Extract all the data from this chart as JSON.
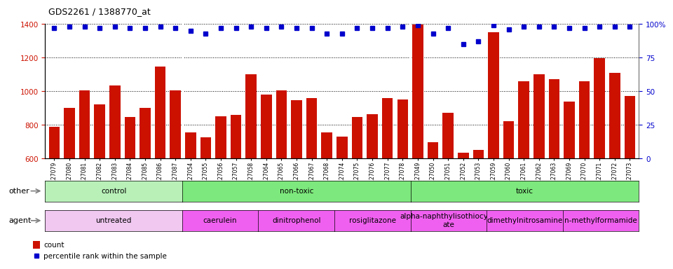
{
  "title": "GDS2261 / 1388770_at",
  "samples": [
    "GSM127079",
    "GSM127080",
    "GSM127081",
    "GSM127082",
    "GSM127083",
    "GSM127084",
    "GSM127085",
    "GSM127086",
    "GSM127087",
    "GSM127054",
    "GSM127055",
    "GSM127056",
    "GSM127057",
    "GSM127058",
    "GSM127064",
    "GSM127065",
    "GSM127066",
    "GSM127067",
    "GSM127068",
    "GSM127074",
    "GSM127075",
    "GSM127076",
    "GSM127077",
    "GSM127078",
    "GSM127049",
    "GSM127050",
    "GSM127051",
    "GSM127052",
    "GSM127053",
    "GSM127059",
    "GSM127060",
    "GSM127061",
    "GSM127062",
    "GSM127063",
    "GSM127069",
    "GSM127070",
    "GSM127071",
    "GSM127072",
    "GSM127073"
  ],
  "counts": [
    790,
    900,
    1005,
    920,
    1035,
    845,
    900,
    1145,
    1005,
    755,
    725,
    850,
    860,
    1100,
    980,
    1005,
    945,
    960,
    755,
    730,
    845,
    865,
    960,
    950,
    1395,
    695,
    870,
    635,
    650,
    1350,
    820,
    1060,
    1100,
    1070,
    940,
    1060,
    1195,
    1110,
    970
  ],
  "percentile_ranks": [
    97,
    98,
    98,
    97,
    98,
    97,
    97,
    98,
    97,
    95,
    93,
    97,
    97,
    98,
    97,
    98,
    97,
    97,
    93,
    93,
    97,
    97,
    97,
    98,
    99,
    93,
    97,
    85,
    87,
    99,
    96,
    98,
    98,
    98,
    97,
    97,
    98,
    98,
    98
  ],
  "ylim_left": [
    600,
    1400
  ],
  "ylim_right": [
    0,
    100
  ],
  "yticks_left": [
    600,
    800,
    1000,
    1200,
    1400
  ],
  "yticks_right": [
    0,
    25,
    50,
    75,
    100
  ],
  "bar_color": "#cc1100",
  "dot_color": "#0000cc",
  "bg_color": "#e8e8e8",
  "plot_bg": "#ffffff",
  "other_groups": [
    {
      "label": "control",
      "color": "#b8f0b8",
      "start": 0,
      "end": 9
    },
    {
      "label": "non-toxic",
      "color": "#7de87d",
      "start": 9,
      "end": 24
    },
    {
      "label": "toxic",
      "color": "#7de87d",
      "start": 24,
      "end": 39
    }
  ],
  "agent_groups": [
    {
      "label": "untreated",
      "color": "#f0c8f0",
      "start": 0,
      "end": 9
    },
    {
      "label": "caerulein",
      "color": "#f060f0",
      "start": 9,
      "end": 14
    },
    {
      "label": "dinitrophenol",
      "color": "#f060f0",
      "start": 14,
      "end": 19
    },
    {
      "label": "rosiglitazone",
      "color": "#f060f0",
      "start": 19,
      "end": 24
    },
    {
      "label": "alpha-naphthylisothiocyan\nate",
      "color": "#f060f0",
      "start": 24,
      "end": 29
    },
    {
      "label": "dimethylnitrosamine",
      "color": "#f060f0",
      "start": 29,
      "end": 34
    },
    {
      "label": "n-methylformamide",
      "color": "#f060f0",
      "start": 34,
      "end": 39
    }
  ],
  "n_total": 39
}
